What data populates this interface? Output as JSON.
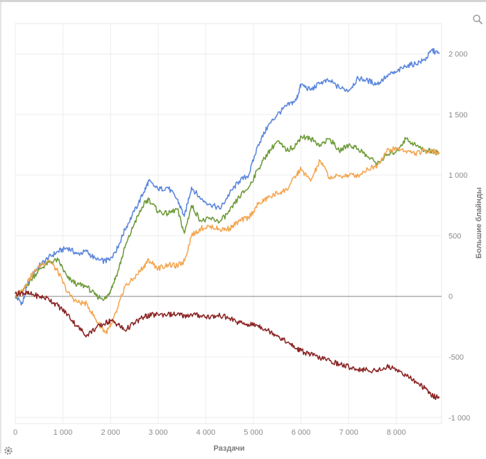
{
  "chart_data": {
    "type": "line",
    "title": "",
    "xlabel": "Раздачи",
    "ylabel": "Большие блайнды",
    "xlim": [
      0,
      8950
    ],
    "ylim": [
      -1050,
      2250
    ],
    "x_ticks": [
      0,
      1000,
      2000,
      3000,
      4000,
      5000,
      6000,
      7000,
      8000
    ],
    "x_tick_labels": [
      "0",
      "1 000",
      "2 000",
      "3 000",
      "4 000",
      "5 000",
      "6 000",
      "7 000",
      "8 000"
    ],
    "y_ticks": [
      2000,
      1500,
      1000,
      500,
      0,
      -500,
      -1000
    ],
    "y_tick_labels": [
      "2 000",
      "1 500",
      "1 000",
      "500",
      "0",
      "-500",
      "-1 000"
    ],
    "grid": true,
    "legend": "none",
    "series": [
      {
        "color": "#5b86dc",
        "x": [
          0,
          150,
          300,
          500,
          700,
          900,
          1100,
          1300,
          1500,
          1700,
          1900,
          2000,
          2150,
          2300,
          2500,
          2700,
          2800,
          3000,
          3200,
          3400,
          3550,
          3700,
          3900,
          4100,
          4300,
          4500,
          4700,
          4900,
          5100,
          5300,
          5500,
          5700,
          5900,
          6000,
          6200,
          6400,
          6600,
          6800,
          7000,
          7200,
          7400,
          7600,
          7800,
          8000,
          8200,
          8400,
          8600,
          8750,
          8900
        ],
        "y": [
          0,
          -60,
          150,
          250,
          320,
          370,
          400,
          350,
          370,
          300,
          290,
          320,
          400,
          550,
          700,
          860,
          950,
          880,
          900,
          800,
          660,
          900,
          800,
          760,
          720,
          850,
          950,
          1000,
          1250,
          1400,
          1500,
          1570,
          1620,
          1750,
          1700,
          1760,
          1780,
          1720,
          1700,
          1800,
          1780,
          1750,
          1820,
          1850,
          1900,
          1920,
          1950,
          2030,
          2000
        ]
      },
      {
        "color": "#6e9b3a",
        "x": [
          0,
          150,
          300,
          500,
          700,
          900,
          1100,
          1300,
          1500,
          1700,
          1900,
          2000,
          2150,
          2300,
          2500,
          2700,
          2800,
          3000,
          3200,
          3400,
          3550,
          3700,
          3900,
          4100,
          4300,
          4500,
          4700,
          4900,
          5100,
          5300,
          5500,
          5700,
          5900,
          6000,
          6200,
          6400,
          6600,
          6800,
          7000,
          7200,
          7400,
          7600,
          7800,
          8000,
          8200,
          8400,
          8600,
          8750,
          8900
        ],
        "y": [
          0,
          40,
          120,
          220,
          280,
          300,
          150,
          100,
          80,
          0,
          -20,
          50,
          200,
          400,
          600,
          760,
          800,
          700,
          680,
          720,
          520,
          750,
          620,
          640,
          620,
          700,
          820,
          900,
          1050,
          1180,
          1280,
          1200,
          1250,
          1320,
          1300,
          1250,
          1300,
          1200,
          1250,
          1220,
          1150,
          1100,
          1160,
          1200,
          1300,
          1250,
          1200,
          1200,
          1180
        ]
      },
      {
        "color": "#f4a651",
        "x": [
          0,
          150,
          300,
          500,
          700,
          900,
          1100,
          1300,
          1500,
          1700,
          1900,
          2000,
          2150,
          2300,
          2500,
          2700,
          2800,
          3000,
          3200,
          3400,
          3550,
          3700,
          3900,
          4100,
          4300,
          4500,
          4700,
          4900,
          5100,
          5300,
          5500,
          5700,
          5900,
          6000,
          6200,
          6400,
          6600,
          6800,
          7000,
          7200,
          7400,
          7600,
          7800,
          8000,
          8200,
          8400,
          8600,
          8750,
          8900
        ],
        "y": [
          0,
          50,
          150,
          250,
          300,
          200,
          30,
          -50,
          -60,
          -200,
          -300,
          -250,
          -100,
          80,
          150,
          250,
          300,
          230,
          260,
          250,
          290,
          500,
          560,
          580,
          550,
          560,
          620,
          650,
          760,
          810,
          850,
          880,
          1000,
          1050,
          950,
          1120,
          980,
          990,
          1000,
          1000,
          1050,
          1080,
          1200,
          1220,
          1200,
          1180,
          1200,
          1200,
          1180
        ]
      },
      {
        "color": "#8b2525",
        "x": [
          0,
          150,
          300,
          500,
          700,
          900,
          1100,
          1300,
          1500,
          1700,
          1900,
          2000,
          2150,
          2300,
          2500,
          2700,
          2800,
          3000,
          3200,
          3400,
          3550,
          3700,
          3900,
          4100,
          4300,
          4500,
          4700,
          4900,
          5100,
          5300,
          5500,
          5700,
          5900,
          6000,
          6200,
          6400,
          6600,
          6800,
          7000,
          7200,
          7400,
          7600,
          7800,
          8000,
          8200,
          8400,
          8600,
          8750,
          8900
        ],
        "y": [
          20,
          30,
          20,
          0,
          -20,
          -80,
          -150,
          -250,
          -320,
          -260,
          -220,
          -200,
          -230,
          -280,
          -220,
          -170,
          -160,
          -150,
          -150,
          -150,
          -160,
          -150,
          -160,
          -170,
          -160,
          -180,
          -220,
          -230,
          -240,
          -280,
          -320,
          -380,
          -430,
          -450,
          -480,
          -510,
          -530,
          -560,
          -580,
          -600,
          -610,
          -610,
          -580,
          -600,
          -650,
          -700,
          -760,
          -820,
          -840
        ]
      }
    ]
  }
}
